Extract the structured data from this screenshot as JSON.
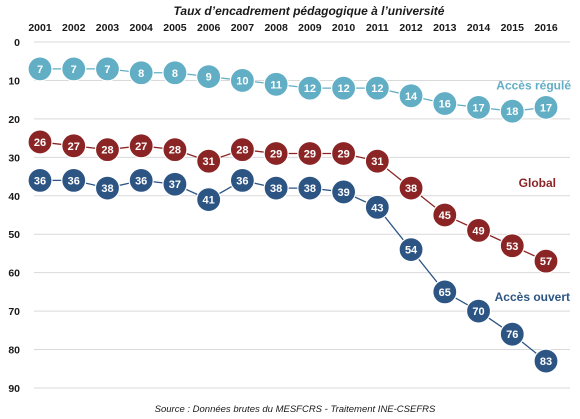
{
  "chart_data": {
    "type": "line",
    "title": "Taux d’encadrement pédagogique à l’université",
    "source": "Source : Données brutes du MESFCRS - Traitement INE-CSEFRS",
    "x": [
      "2001",
      "2002",
      "2003",
      "2004",
      "2005",
      "2006",
      "2007",
      "2008",
      "2009",
      "2010",
      "2011",
      "2012",
      "2013",
      "2014",
      "2015",
      "2016"
    ],
    "y_ticks": [
      0,
      10,
      20,
      30,
      40,
      50,
      60,
      70,
      80,
      90
    ],
    "ylim": [
      0,
      90
    ],
    "y_inverted": true,
    "x_axis_position": "top",
    "grid": true,
    "series": [
      {
        "name": "Accès régulé",
        "color": "#62aec5",
        "values": [
          7,
          7,
          7,
          8,
          8,
          9,
          10,
          11,
          12,
          12,
          12,
          14,
          16,
          17,
          18,
          17
        ]
      },
      {
        "name": "Global",
        "color": "#8b2525",
        "values": [
          26,
          27,
          28,
          27,
          28,
          31,
          28,
          29,
          29,
          29,
          31,
          38,
          45,
          49,
          53,
          57
        ]
      },
      {
        "name": "Accès ouvert",
        "color": "#2d5584",
        "values": [
          36,
          36,
          38,
          36,
          37,
          41,
          36,
          38,
          38,
          39,
          43,
          54,
          65,
          70,
          76,
          83
        ]
      }
    ]
  }
}
